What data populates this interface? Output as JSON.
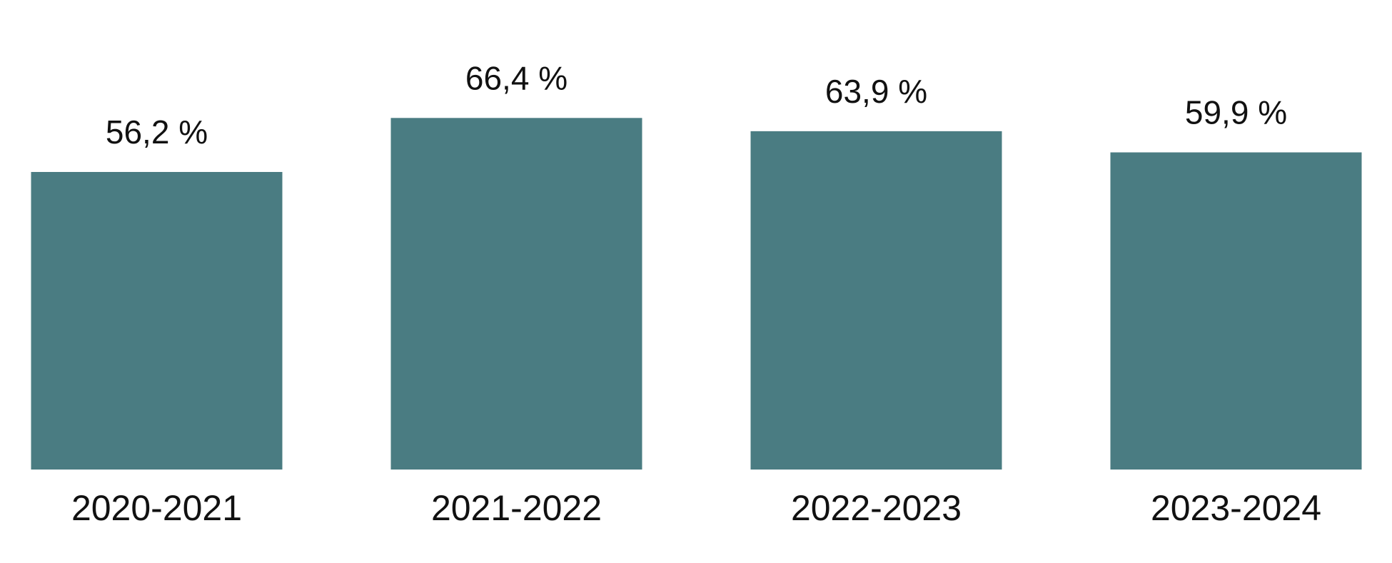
{
  "chart_data": {
    "type": "bar",
    "categories": [
      "2020-2021",
      "2021-2022",
      "2022-2023",
      "2023-2024"
    ],
    "values": [
      56.2,
      66.4,
      63.9,
      59.9
    ],
    "value_labels": [
      "56,2 %",
      "66,4 %",
      "63,9 %",
      "59,9 %"
    ],
    "color": "#4a7c82"
  }
}
